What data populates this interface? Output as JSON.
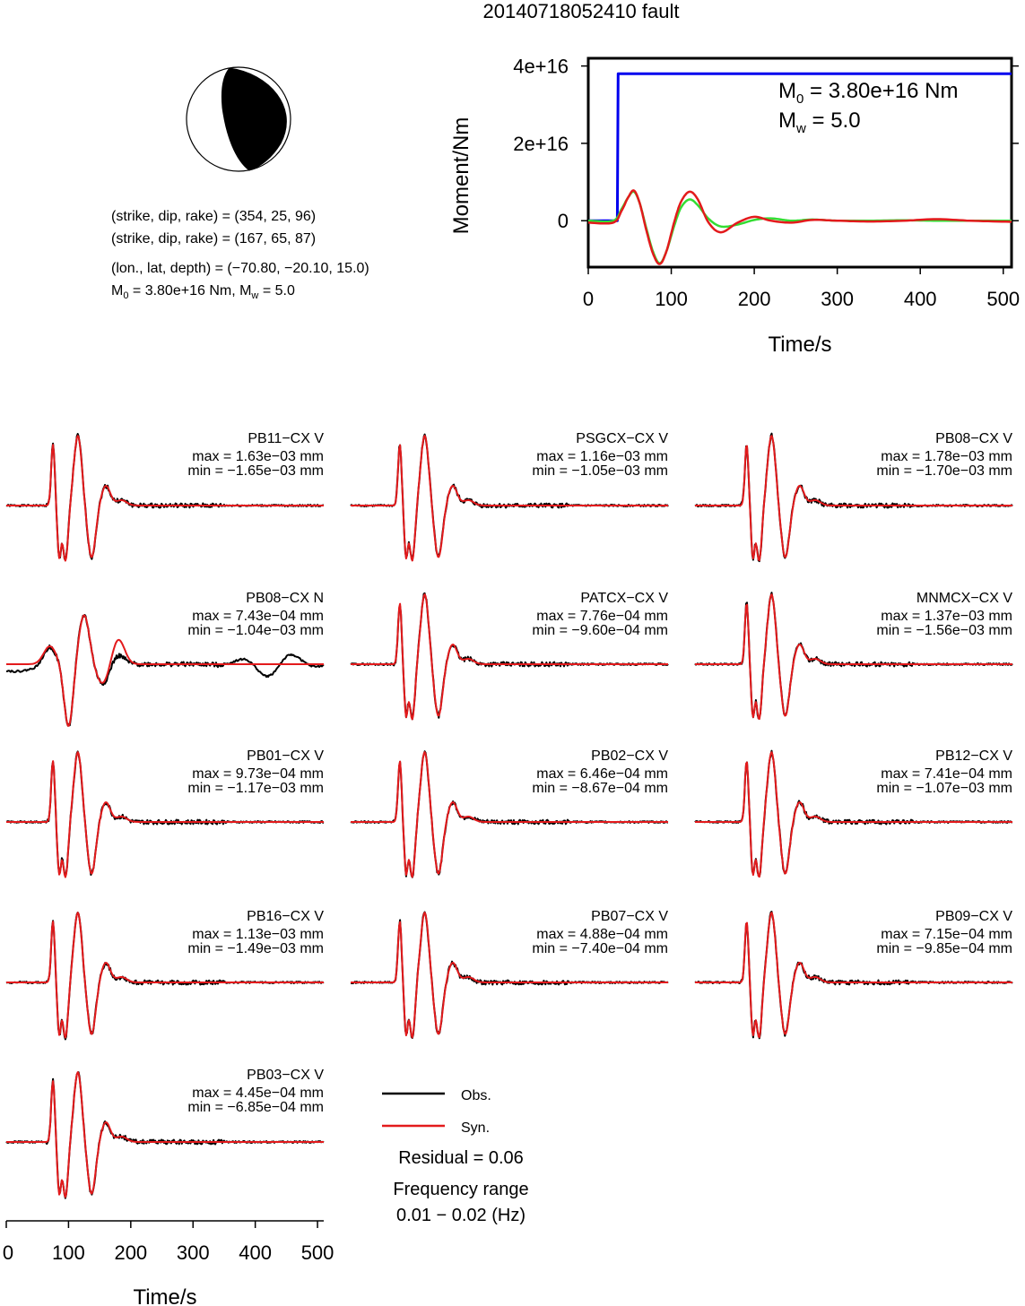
{
  "title": "20140718052410 fault",
  "colors": {
    "observed": "#000000",
    "synthetic": "#e31a1c",
    "moment": "#0000ee",
    "stf_green": "#33dd33",
    "beachball_fill": "#000000"
  },
  "focal_mechanism": {
    "plane1": "(strike, dip, rake) = (354, 25, 96)",
    "plane2": "(strike, dip, rake) = (167, 65, 87)",
    "location": "(lon., lat, depth) = (−70.80, −20.10, 15.0)",
    "magnitude": {
      "m0_prefix": "M",
      "m0_sub": "0",
      "m0_value": " = 3.80e+16 Nm, M",
      "mw_sub": "w",
      "mw_value": " = 5.0"
    }
  },
  "legend": {
    "obs_label": "Obs.",
    "syn_label": "Syn.",
    "residual": "Residual = 0.06",
    "freq_line1": "Frequency range",
    "freq_line2": "0.01 − 0.02 (Hz)"
  },
  "chart_data": [
    {
      "type": "line",
      "xlabel": "Time/s",
      "ylabel": "Moment/Nm",
      "xlim": [
        0,
        510
      ],
      "ylim": [
        -1.2e+16,
        4.2e+16
      ],
      "x_ticks": [
        "0",
        "100",
        "200",
        "300",
        "400",
        "500"
      ],
      "y_ticks": [
        "0",
        "2e+16",
        "4e+16"
      ],
      "grid": false,
      "annotation": {
        "m0_prefix": "M",
        "m0_sub": "0",
        "m0_value": " = 3.80e+16 Nm",
        "mw_prefix": "M",
        "mw_sub": "w",
        "mw_value": " = 5.0"
      },
      "series": [
        {
          "x": [
            0,
            35,
            36,
            40,
            510
          ],
          "values": [
            0,
            0,
            3.8e+16,
            3.8e+16,
            3.8e+16
          ]
        },
        {
          "x": [
            0,
            30,
            40,
            48,
            55,
            62,
            70,
            78,
            86,
            94,
            104,
            112,
            122,
            132,
            145,
            160,
            180,
            200,
            220,
            245,
            270,
            300,
            340,
            380,
            420,
            460,
            510
          ],
          "values": [
            0,
            0,
            3000000000000000.0,
            6000000000000000.0,
            7500000000000000.0,
            4500000000000000.0,
            -2000000000000000.0,
            -8000000000000000.0,
            -1.1e+16,
            -8000000000000000.0,
            -1000000000000000.0,
            3500000000000000.0,
            5500000000000000.0,
            4000000000000000.0,
            500000000000000.0,
            -1500000000000000.0,
            -1000000000000000.0,
            200000000000000.0,
            600000000000000.0,
            0.0,
            300000000000000.0,
            0.0,
            0.0,
            100000000000000.0,
            0.0,
            0.0,
            0.0
          ]
        },
        {
          "x": [
            0,
            30,
            40,
            48,
            55,
            62,
            70,
            78,
            86,
            94,
            104,
            112,
            122,
            132,
            145,
            160,
            180,
            200,
            220,
            245,
            270,
            300,
            340,
            380,
            420,
            460,
            510
          ],
          "values": [
            -500000000000000.0,
            -500000000000000.0,
            2500000000000000.0,
            6000000000000000.0,
            7800000000000000.0,
            4500000000000000.0,
            -2500000000000000.0,
            -8500000000000000.0,
            -1.12e+16,
            -8000000000000000.0,
            0.0,
            5000000000000000.0,
            7500000000000000.0,
            5500000000000000.0,
            -500000000000000.0,
            -3000000000000000.0,
            -500000000000000.0,
            1000000000000000.0,
            0.0,
            -500000000000000.0,
            200000000000000.0,
            0.0,
            -200000000000000.0,
            0.0,
            400000000000000.0,
            0.0,
            -300000000000000.0
          ]
        }
      ]
    },
    {
      "type": "line",
      "xlabel": "Time/s",
      "x_ticks": [
        "0",
        "100",
        "200",
        "300",
        "400",
        "500"
      ],
      "xlim": [
        0,
        510
      ],
      "grid": false,
      "stations": [
        {
          "name": "PB11−CX V",
          "max": "max = 1.63e−03 mm",
          "min": "min = −1.65e−03 mm"
        },
        {
          "name": "PSGCX−CX V",
          "max": "max = 1.16e−03 mm",
          "min": "min = −1.05e−03 mm"
        },
        {
          "name": "PB08−CX V",
          "max": "max = 1.78e−03 mm",
          "min": "min = −1.70e−03 mm"
        },
        {
          "name": "PB08−CX N",
          "max": "max = 7.43e−04 mm",
          "min": "min = −1.04e−03 mm"
        },
        {
          "name": "PATCX−CX V",
          "max": "max = 7.76e−04 mm",
          "min": "min = −9.60e−04 mm"
        },
        {
          "name": "MNMCX−CX V",
          "max": "max = 1.37e−03 mm",
          "min": "min = −1.56e−03 mm"
        },
        {
          "name": "PB01−CX V",
          "max": "max = 9.73e−04 mm",
          "min": "min = −1.17e−03 mm"
        },
        {
          "name": "PB02−CX V",
          "max": "max = 6.46e−04 mm",
          "min": "min = −8.67e−04 mm"
        },
        {
          "name": "PB12−CX V",
          "max": "max = 7.41e−04 mm",
          "min": "min = −1.07e−03 mm"
        },
        {
          "name": "PB16−CX V",
          "max": "max = 1.13e−03 mm",
          "min": "min = −1.49e−03 mm"
        },
        {
          "name": "PB07−CX V",
          "max": "max = 4.88e−04 mm",
          "min": "min = −7.40e−04 mm"
        },
        {
          "name": "PB09−CX V",
          "max": "max = 7.15e−04 mm",
          "min": "min = −9.85e−04 mm"
        },
        {
          "name": "PB03−CX V",
          "max": "max = 4.45e−04 mm",
          "min": "min = −6.85e−04 mm"
        }
      ]
    }
  ]
}
